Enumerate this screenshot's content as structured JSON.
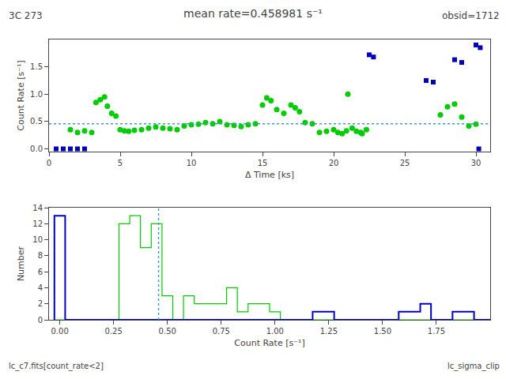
{
  "chart_data": [
    {
      "type": "scatter",
      "title": "mean rate=0.458981 s⁻¹",
      "annotations": [
        "3C 273",
        "obsid=1712"
      ],
      "x_label": "Δ Time [ks]",
      "y_label": "Count Rate [s⁻¹]",
      "xlim": [
        0,
        31
      ],
      "ylim": [
        -0.05,
        2.0
      ],
      "xticks": [
        0,
        5,
        10,
        15,
        20,
        25,
        30
      ],
      "yticks": [
        {
          "value": 0.0,
          "label": "0.0"
        },
        0.5,
        {
          "value": 1.0,
          "label": "1.0"
        },
        1.5
      ],
      "grid": false,
      "series": [
        {
          "color": "#00cc00",
          "marker": "circle",
          "x": [
            1.5,
            2.0,
            2.5,
            3.0,
            3.3,
            3.6,
            3.9,
            4.1,
            4.4,
            4.7,
            5.0,
            5.3,
            5.6,
            6.0,
            6.5,
            7.0,
            7.5,
            8.0,
            8.5,
            9.0,
            9.5,
            10.0,
            10.5,
            11.0,
            11.5,
            12.0,
            12.5,
            13.0,
            13.5,
            14.0,
            14.5,
            15.0,
            15.3,
            15.6,
            16.0,
            16.5,
            17.0,
            17.3,
            17.6,
            18.0,
            18.5,
            19.0,
            19.5,
            20.0,
            20.3,
            20.6,
            20.9,
            21.0,
            21.3,
            21.6,
            21.9,
            22.0,
            22.3,
            27.5,
            28.0,
            28.5,
            29.0,
            29.5,
            30.0
          ],
          "values": [
            0.35,
            0.3,
            0.33,
            0.3,
            0.85,
            0.9,
            0.95,
            0.78,
            0.65,
            0.6,
            0.35,
            0.33,
            0.32,
            0.34,
            0.35,
            0.38,
            0.4,
            0.38,
            0.37,
            0.35,
            0.42,
            0.44,
            0.45,
            0.48,
            0.46,
            0.5,
            0.44,
            0.43,
            0.41,
            0.44,
            0.46,
            0.8,
            0.93,
            0.88,
            0.72,
            0.65,
            0.8,
            0.75,
            0.68,
            0.48,
            0.46,
            0.3,
            0.32,
            0.35,
            0.3,
            0.28,
            0.33,
            1.0,
            0.38,
            0.32,
            0.3,
            0.28,
            0.35,
            0.62,
            0.77,
            0.82,
            0.58,
            0.42,
            0.45
          ]
        },
        {
          "color": "#0000bb",
          "marker": "square",
          "x": [
            22.5,
            22.8,
            26.5,
            27.0,
            28.5,
            29.0,
            30.0,
            30.3
          ],
          "values": [
            1.72,
            1.68,
            1.25,
            1.22,
            1.63,
            1.58,
            1.9,
            1.85
          ]
        },
        {
          "color": "#0000bb",
          "marker": "square",
          "x": [
            0.5,
            1.0,
            1.5,
            2.0,
            2.5
          ],
          "values": [
            0.0,
            0.0,
            0.0,
            0.0,
            0.0
          ]
        },
        {
          "color": "#0000bb",
          "marker": "square",
          "x": [
            30.2
          ],
          "values": [
            0.0
          ]
        }
      ],
      "hline": {
        "value": 0.458981,
        "color": "#4499cc",
        "line_style": "dotted"
      }
    },
    {
      "type": "histogram",
      "annotations": [
        "lc_c7.fits[count_rate<2]",
        "lc_sigma_clip"
      ],
      "x_label": "Count Rate [s⁻¹]",
      "y_label": "Number",
      "xlim": [
        -0.05,
        2.0
      ],
      "ylim": [
        0,
        14
      ],
      "xticks": [
        {
          "value": 0.0,
          "label": "0.00"
        },
        {
          "value": 0.25,
          "label": "0.25"
        },
        {
          "value": 0.5,
          "label": "0.50"
        },
        {
          "value": 0.75,
          "label": "0.75"
        },
        {
          "value": 1.0,
          "label": "1.00"
        },
        {
          "value": 1.25,
          "label": "1.25"
        },
        {
          "value": 1.5,
          "label": "1.50"
        },
        {
          "value": 1.75,
          "label": "1.75"
        }
      ],
      "yticks": [
        0,
        2,
        4,
        6,
        8,
        10,
        12,
        14
      ],
      "grid": false,
      "bins": [
        -0.025,
        0.025,
        0.075,
        0.125,
        0.175,
        0.225,
        0.275,
        0.325,
        0.375,
        0.425,
        0.475,
        0.525,
        0.575,
        0.625,
        0.675,
        0.725,
        0.775,
        0.825,
        0.875,
        0.925,
        0.975,
        1.025,
        1.075,
        1.125,
        1.175,
        1.225,
        1.275,
        1.325,
        1.375,
        1.425,
        1.475,
        1.525,
        1.575,
        1.625,
        1.675,
        1.725,
        1.775,
        1.825,
        1.875,
        1.925,
        1.975,
        2.025
      ],
      "series": [
        {
          "color": "#00cc00",
          "values": [
            0,
            0,
            0,
            0,
            0,
            0,
            12,
            13,
            9,
            12,
            3,
            0,
            3,
            2,
            2,
            2,
            4,
            1,
            2,
            2,
            1,
            0,
            0,
            0,
            0,
            0,
            0,
            0,
            0,
            0,
            0,
            0,
            0,
            0,
            0,
            0,
            0,
            0,
            0,
            0,
            0
          ]
        },
        {
          "color": "#0000bb",
          "values": [
            13,
            0,
            0,
            0,
            0,
            0,
            0,
            0,
            0,
            0,
            0,
            0,
            0,
            0,
            0,
            0,
            0,
            0,
            0,
            0,
            0,
            0,
            0,
            0,
            1,
            1,
            0,
            0,
            0,
            0,
            0,
            0,
            1,
            1,
            2,
            0,
            0,
            1,
            1,
            0,
            0
          ]
        }
      ],
      "vline": {
        "value": 0.458981,
        "color": "#4499cc",
        "line_style": "dotted"
      }
    }
  ]
}
